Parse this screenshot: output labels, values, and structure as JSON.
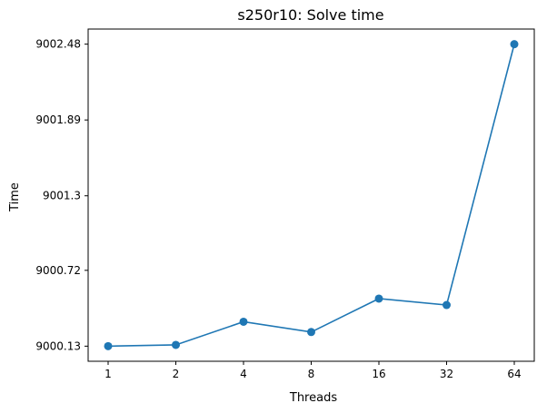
{
  "chart_data": {
    "type": "line",
    "title": "s250r10: Solve time",
    "xlabel": "Threads",
    "ylabel": "Time",
    "categories": [
      "1",
      "2",
      "4",
      "8",
      "16",
      "32",
      "64"
    ],
    "series": [
      {
        "values": [
          9000.13,
          9000.14,
          9000.32,
          9000.24,
          9000.5,
          9000.45,
          9002.48
        ]
      }
    ],
    "y_ticks": [
      "9000.13",
      "9000.72",
      "9001.3",
      "9001.89",
      "9002.48"
    ],
    "y_tick_values": [
      9000.13,
      9000.72,
      9001.3,
      9001.89,
      9002.48
    ],
    "ylim": [
      9000.0125,
      9002.5975
    ],
    "grid": false,
    "legend": "none",
    "colors": {
      "line": "#1f77b4",
      "axis": "#000000"
    }
  }
}
